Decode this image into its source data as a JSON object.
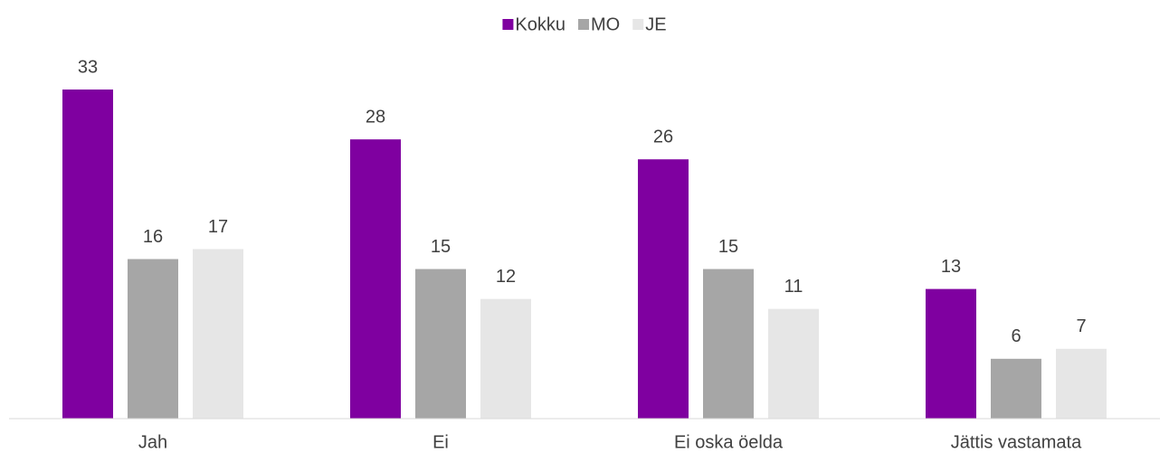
{
  "chart_data": {
    "type": "bar",
    "categories": [
      "Jah",
      "Ei",
      "Ei oska öelda",
      "Jättis vastamata"
    ],
    "series": [
      {
        "name": "Kokku",
        "color": "#7f00a0",
        "values": [
          33,
          28,
          26,
          13
        ]
      },
      {
        "name": "MO",
        "color": "#a6a6a6",
        "values": [
          16,
          15,
          15,
          6
        ]
      },
      {
        "name": "JE",
        "color": "#e6e6e6",
        "values": [
          17,
          12,
          11,
          7
        ]
      }
    ],
    "legend": "top"
  }
}
